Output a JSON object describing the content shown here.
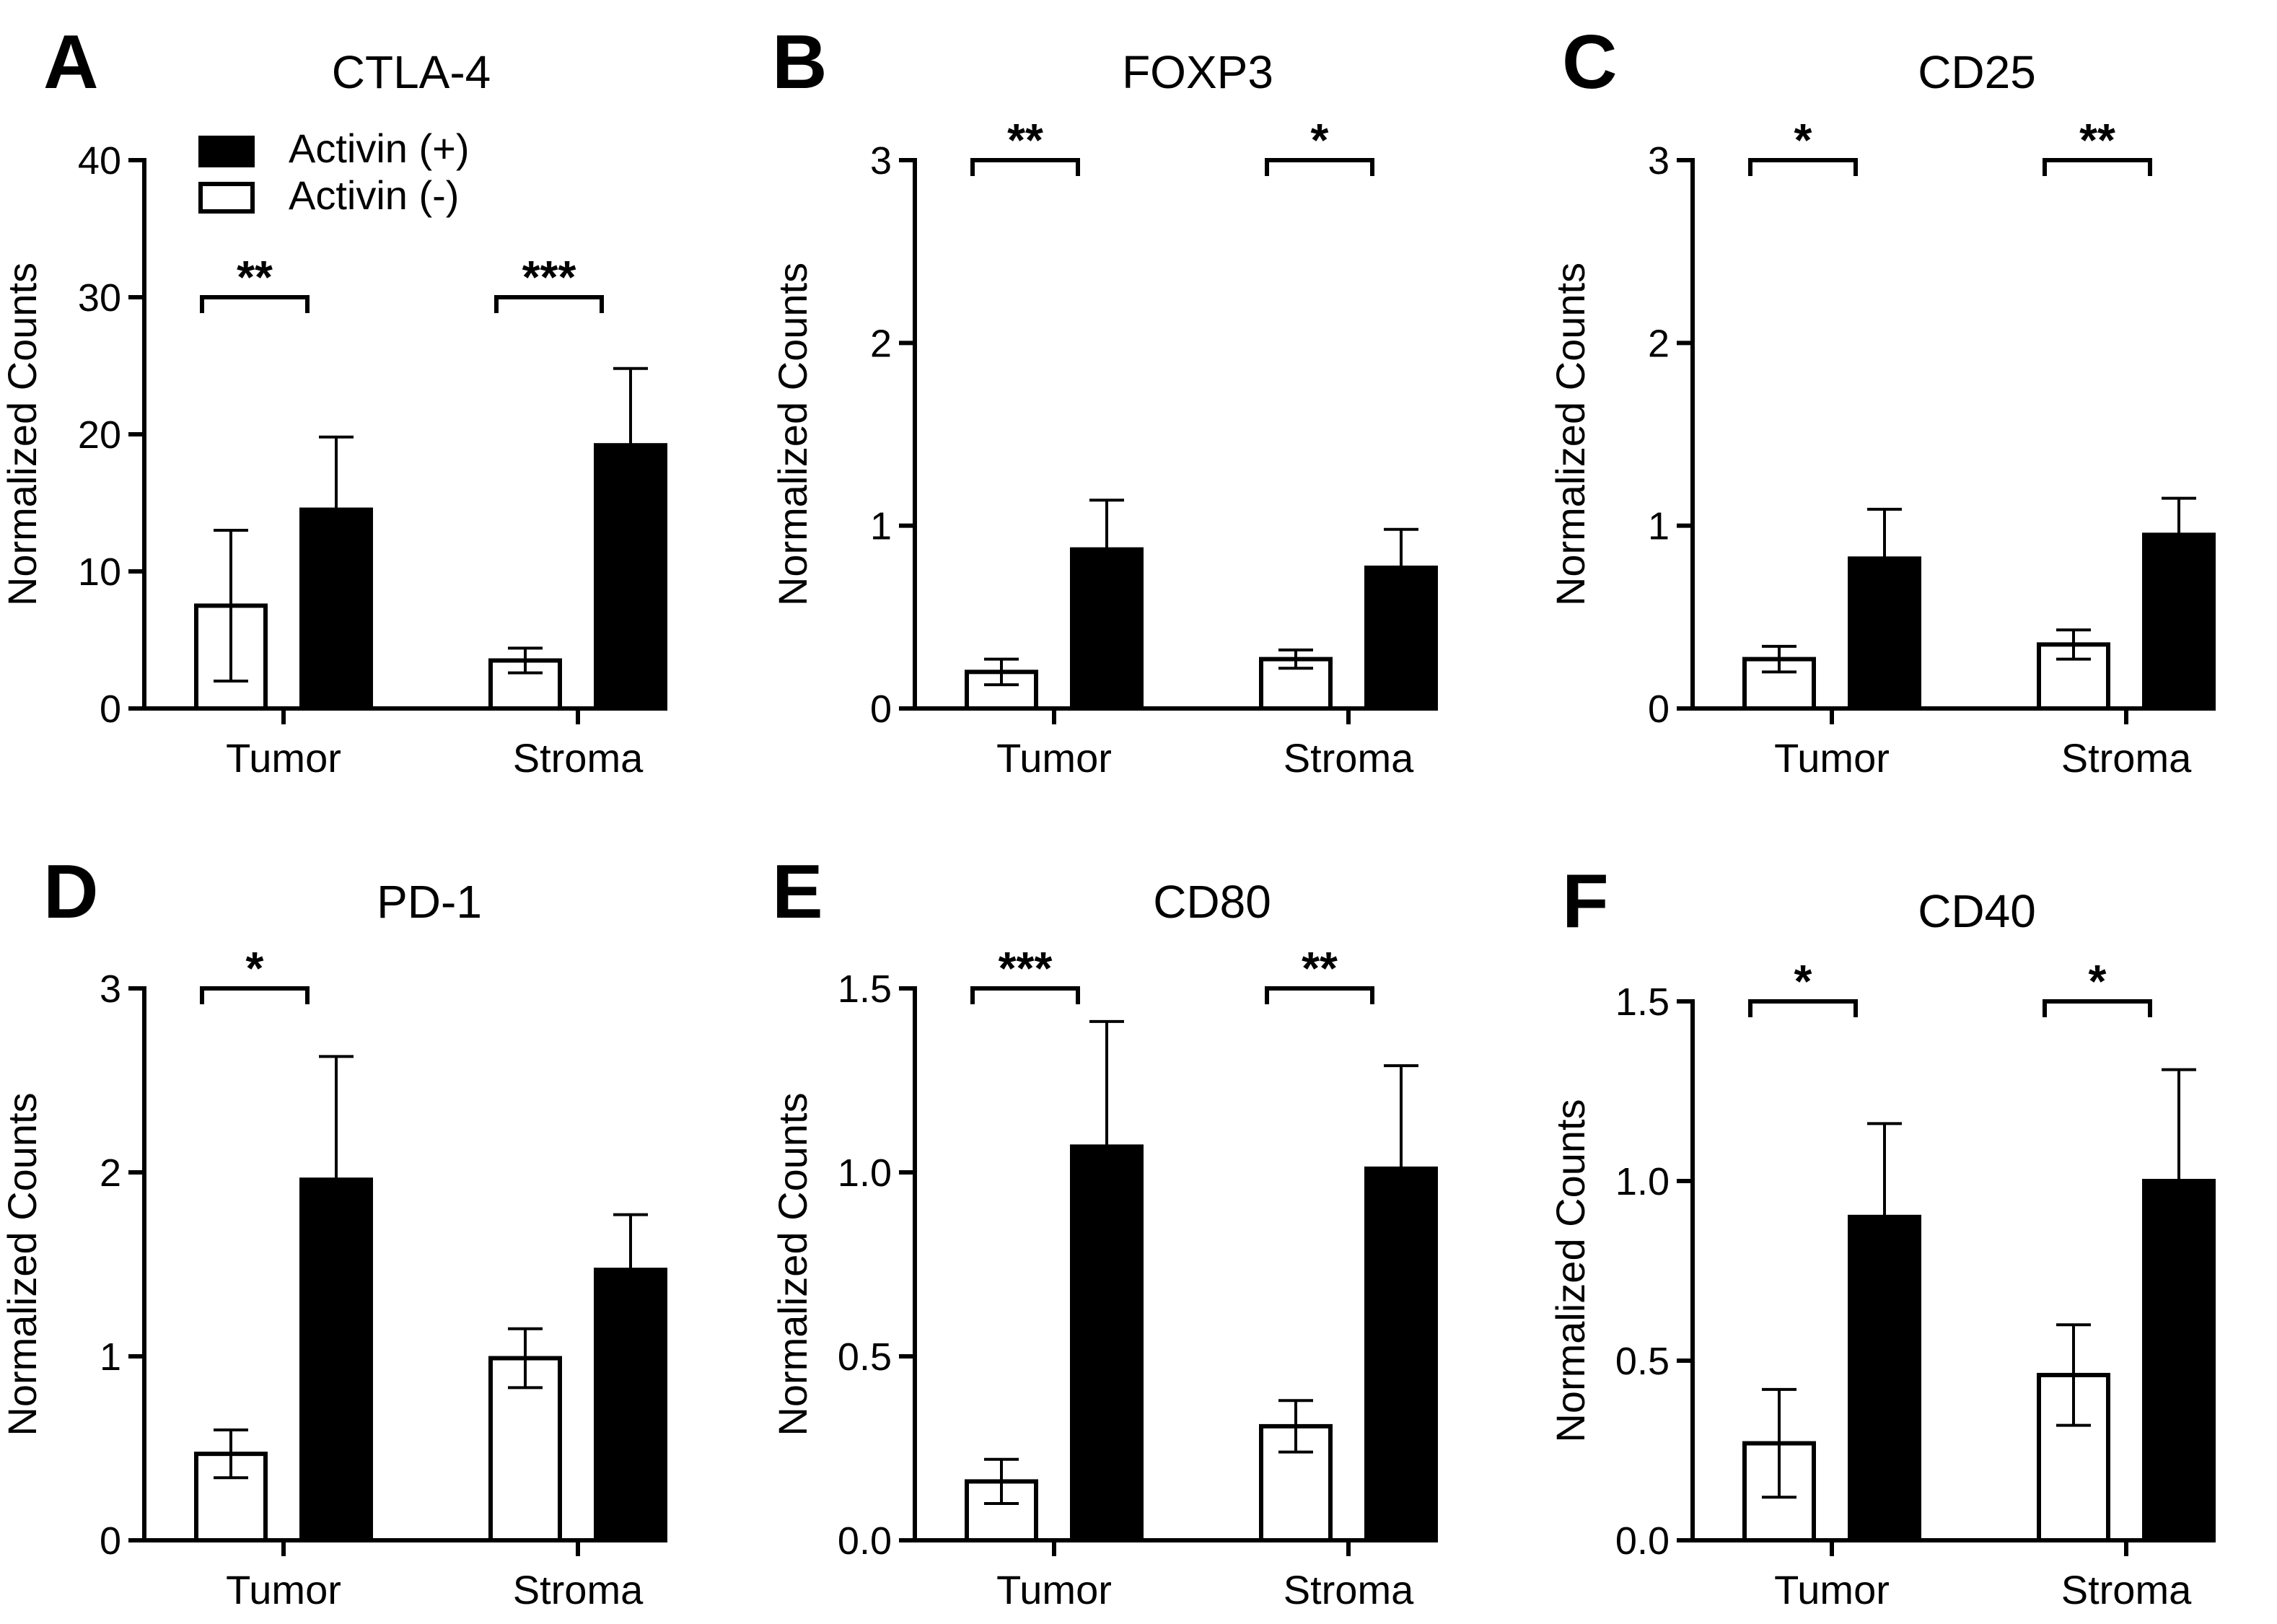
{
  "legend": {
    "items": [
      {
        "label": "Activin (+)",
        "fill": "#000000"
      },
      {
        "label": "Activin (-)",
        "fill": "#ffffff"
      }
    ],
    "placement": "top-left of panel A"
  },
  "chart_data": [
    {
      "panel": "A",
      "type": "bar",
      "title": "CTLA-4",
      "xlabel": "",
      "ylabel": "Normalized Counts",
      "categories": [
        "Tumor",
        "Stroma"
      ],
      "ylim": [
        0,
        40
      ],
      "yticks": [
        "0",
        "10",
        "20",
        "30",
        "40"
      ],
      "ytick_values": [
        0,
        10,
        20,
        30,
        40
      ],
      "series": [
        {
          "name": "Activin (-)",
          "values": [
            7.5,
            3.5
          ],
          "errors": [
            5.5,
            0.9
          ]
        },
        {
          "name": "Activin (+)",
          "values": [
            14.5,
            19.2
          ],
          "errors": [
            5.3,
            5.6
          ]
        }
      ],
      "significance": [
        {
          "category": "Tumor",
          "label": "**",
          "y": 30
        },
        {
          "category": "Stroma",
          "label": "***",
          "y": 30
        }
      ]
    },
    {
      "panel": "B",
      "type": "bar",
      "title": "FOXP3",
      "xlabel": "",
      "ylabel": "Normalized Counts",
      "categories": [
        "Tumor",
        "Stroma"
      ],
      "ylim": [
        0,
        3
      ],
      "yticks": [
        "0",
        "1",
        "2",
        "3"
      ],
      "ytick_values": [
        0,
        1,
        2,
        3
      ],
      "series": [
        {
          "name": "Activin (-)",
          "values": [
            0.2,
            0.27
          ],
          "errors": [
            0.07,
            0.05
          ]
        },
        {
          "name": "Activin (+)",
          "values": [
            0.87,
            0.77
          ],
          "errors": [
            0.27,
            0.21
          ]
        }
      ],
      "significance": [
        {
          "category": "Tumor",
          "label": "**",
          "y": 3
        },
        {
          "category": "Stroma",
          "label": "*",
          "y": 3
        }
      ]
    },
    {
      "panel": "C",
      "type": "bar",
      "title": "CD25",
      "xlabel": "",
      "ylabel": "Normalized Counts",
      "categories": [
        "Tumor",
        "Stroma"
      ],
      "ylim": [
        0,
        3
      ],
      "yticks": [
        "0",
        "1",
        "2",
        "3"
      ],
      "ytick_values": [
        0,
        1,
        2,
        3
      ],
      "series": [
        {
          "name": "Activin (-)",
          "values": [
            0.27,
            0.35
          ],
          "errors": [
            0.07,
            0.08
          ]
        },
        {
          "name": "Activin (+)",
          "values": [
            0.82,
            0.95
          ],
          "errors": [
            0.27,
            0.2
          ]
        }
      ],
      "significance": [
        {
          "category": "Tumor",
          "label": "*",
          "y": 3
        },
        {
          "category": "Stroma",
          "label": "**",
          "y": 3
        }
      ]
    },
    {
      "panel": "D",
      "type": "bar",
      "title": "PD-1",
      "xlabel": "",
      "ylabel": "Normalized Counts",
      "categories": [
        "Tumor",
        "Stroma"
      ],
      "ylim": [
        0,
        3
      ],
      "yticks": [
        "0",
        "1",
        "2",
        "3"
      ],
      "ytick_values": [
        0,
        1,
        2,
        3
      ],
      "series": [
        {
          "name": "Activin (-)",
          "values": [
            0.47,
            0.99
          ],
          "errors": [
            0.13,
            0.16
          ]
        },
        {
          "name": "Activin (+)",
          "values": [
            1.96,
            1.47
          ],
          "errors": [
            0.67,
            0.3
          ]
        }
      ],
      "significance": [
        {
          "category": "Tumor",
          "label": "*",
          "y": 3
        }
      ]
    },
    {
      "panel": "E",
      "type": "bar",
      "title": "CD80",
      "xlabel": "",
      "ylabel": "Normalized Counts",
      "categories": [
        "Tumor",
        "Stroma"
      ],
      "ylim": [
        0,
        1.5
      ],
      "yticks": [
        "0.0",
        "0.5",
        "1.0",
        "1.5"
      ],
      "ytick_values": [
        0,
        0.5,
        1.0,
        1.5
      ],
      "series": [
        {
          "name": "Activin (-)",
          "values": [
            0.16,
            0.31
          ],
          "errors": [
            0.06,
            0.07
          ]
        },
        {
          "name": "Activin (+)",
          "values": [
            1.07,
            1.01
          ],
          "errors": [
            0.34,
            0.28
          ]
        }
      ],
      "significance": [
        {
          "category": "Tumor",
          "label": "***",
          "y": 1.5
        },
        {
          "category": "Stroma",
          "label": "**",
          "y": 1.5
        }
      ]
    },
    {
      "panel": "F",
      "type": "bar",
      "title": "CD40",
      "xlabel": "",
      "ylabel": "Normalized Counts",
      "categories": [
        "Tumor",
        "Stroma"
      ],
      "ylim": [
        0,
        1.5
      ],
      "yticks": [
        "0.0",
        "0.5",
        "1.0",
        "1.5"
      ],
      "ytick_values": [
        0,
        0.5,
        1.0,
        1.5
      ],
      "series": [
        {
          "name": "Activin (-)",
          "values": [
            0.27,
            0.46
          ],
          "errors": [
            0.15,
            0.14
          ]
        },
        {
          "name": "Activin (+)",
          "values": [
            0.9,
            1.0
          ],
          "errors": [
            0.26,
            0.31
          ]
        }
      ],
      "significance": [
        {
          "category": "Tumor",
          "label": "*",
          "y": 1.5
        },
        {
          "category": "Stroma",
          "label": "*",
          "y": 1.5
        }
      ]
    }
  ]
}
